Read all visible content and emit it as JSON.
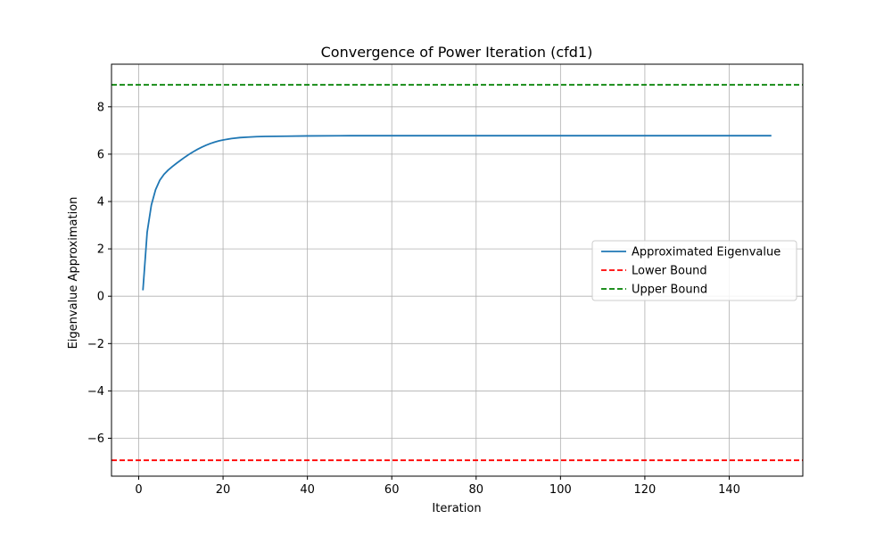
{
  "chart_data": {
    "type": "line",
    "title": "Convergence of Power Iteration (cfd1)",
    "xlabel": "Iteration",
    "ylabel": "Eigenvalue Approximation",
    "xlim": [
      -6.45,
      157.45
    ],
    "ylim": [
      -7.6,
      9.8
    ],
    "xticks": [
      0,
      20,
      40,
      60,
      80,
      100,
      120,
      140
    ],
    "yticks": [
      -6,
      -4,
      -2,
      0,
      2,
      4,
      6,
      8
    ],
    "grid": true,
    "legend_position": "center-right",
    "series": [
      {
        "name": "Approximated Eigenvalue",
        "style": "solid",
        "color": "#1f77b4",
        "x": [
          1,
          2,
          3,
          4,
          5,
          6,
          7,
          8,
          9,
          10,
          11,
          12,
          13,
          14,
          15,
          16,
          17,
          18,
          19,
          20,
          22,
          24,
          26,
          28,
          30,
          35,
          40,
          50,
          60,
          80,
          100,
          120,
          150
        ],
        "y": [
          0.25,
          2.7,
          3.85,
          4.5,
          4.9,
          5.15,
          5.33,
          5.48,
          5.62,
          5.75,
          5.88,
          6.0,
          6.11,
          6.21,
          6.3,
          6.38,
          6.45,
          6.51,
          6.56,
          6.6,
          6.66,
          6.7,
          6.72,
          6.74,
          6.75,
          6.76,
          6.77,
          6.78,
          6.78,
          6.78,
          6.78,
          6.78,
          6.78
        ]
      },
      {
        "name": "Lower Bound",
        "style": "dashed",
        "color": "#ff0000",
        "value": -6.93
      },
      {
        "name": "Upper Bound",
        "style": "dashed",
        "color": "#008000",
        "value": 8.93
      }
    ]
  }
}
